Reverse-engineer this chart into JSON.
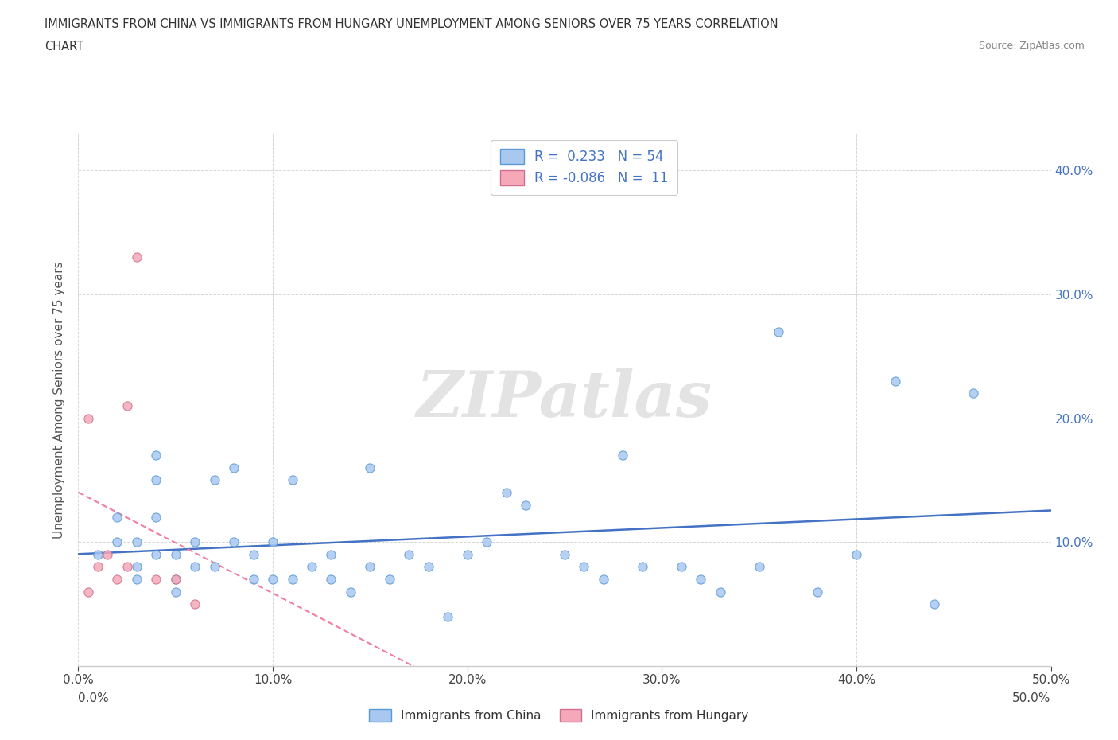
{
  "title_line1": "IMMIGRANTS FROM CHINA VS IMMIGRANTS FROM HUNGARY UNEMPLOYMENT AMONG SENIORS OVER 75 YEARS CORRELATION",
  "title_line2": "CHART",
  "source_text": "Source: ZipAtlas.com",
  "ylabel": "Unemployment Among Seniors over 75 years",
  "xlim": [
    0.0,
    0.5
  ],
  "ylim": [
    0.0,
    0.43
  ],
  "x_ticks": [
    0.0,
    0.1,
    0.2,
    0.3,
    0.4,
    0.5
  ],
  "y_ticks": [
    0.1,
    0.2,
    0.3,
    0.4
  ],
  "china_color": "#a8c8f0",
  "china_edge_color": "#5b9bd5",
  "hungary_color": "#f4a8b8",
  "hungary_edge_color": "#d07090",
  "china_line_color": "#4472c4",
  "hungary_line_color": "#f080a0",
  "watermark_text": "ZIPatlas",
  "legend_china_R": " 0.233",
  "legend_china_N": "54",
  "legend_hungary_R": "-0.086",
  "legend_hungary_N": "11",
  "china_scatter_x": [
    0.01,
    0.02,
    0.02,
    0.03,
    0.03,
    0.03,
    0.04,
    0.04,
    0.04,
    0.04,
    0.05,
    0.05,
    0.05,
    0.06,
    0.06,
    0.07,
    0.07,
    0.08,
    0.08,
    0.09,
    0.09,
    0.1,
    0.1,
    0.11,
    0.11,
    0.12,
    0.13,
    0.13,
    0.14,
    0.15,
    0.15,
    0.16,
    0.17,
    0.18,
    0.19,
    0.2,
    0.21,
    0.22,
    0.23,
    0.25,
    0.26,
    0.27,
    0.28,
    0.29,
    0.31,
    0.32,
    0.33,
    0.35,
    0.36,
    0.38,
    0.4,
    0.42,
    0.44,
    0.46
  ],
  "china_scatter_y": [
    0.09,
    0.1,
    0.12,
    0.08,
    0.1,
    0.07,
    0.09,
    0.12,
    0.15,
    0.17,
    0.06,
    0.07,
    0.09,
    0.08,
    0.1,
    0.08,
    0.15,
    0.1,
    0.16,
    0.07,
    0.09,
    0.07,
    0.1,
    0.07,
    0.15,
    0.08,
    0.07,
    0.09,
    0.06,
    0.08,
    0.16,
    0.07,
    0.09,
    0.08,
    0.04,
    0.09,
    0.1,
    0.14,
    0.13,
    0.09,
    0.08,
    0.07,
    0.17,
    0.08,
    0.08,
    0.07,
    0.06,
    0.08,
    0.27,
    0.06,
    0.09,
    0.23,
    0.05,
    0.22
  ],
  "hungary_scatter_x": [
    0.005,
    0.005,
    0.01,
    0.015,
    0.02,
    0.025,
    0.025,
    0.03,
    0.04,
    0.05,
    0.06
  ],
  "hungary_scatter_y": [
    0.06,
    0.2,
    0.08,
    0.09,
    0.07,
    0.08,
    0.21,
    0.33,
    0.07,
    0.07,
    0.05
  ]
}
